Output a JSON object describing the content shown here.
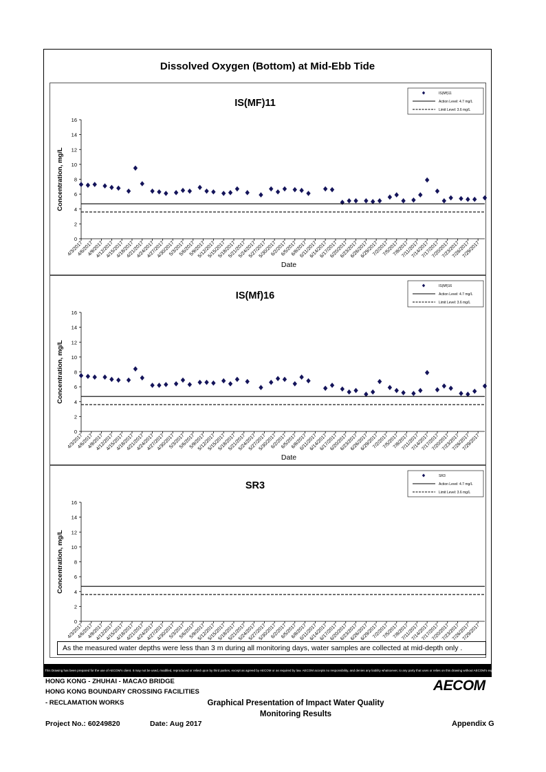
{
  "page": {
    "title": "Dissolved Oxygen (Bottom) at Mid-Ebb Tide",
    "note": "As the measured water depths were less than 3 m during all monitoring days, water samples are collected  at mid-depth only .",
    "disclaimer": "This Drawing has been prepared for the use of AECOM's client. It may not be used, modified, reproduced or relied upon by third parties, except as agreed by AECOM or as required by law. AECOM accepts no responsibility, and denies any liability whatsoever, to any party that uses or relies on this drawing without AECOM's express written consent."
  },
  "title_block": {
    "line1": "HONG KONG - ZHUHAI - MACAO BRIDGE",
    "line2": "HONG KONG BOUNDARY CROSSING FACILITIES",
    "line3": "- RECLAMATION WORKS",
    "graph_title_1": "Graphical Presentation of Impact Water Quality",
    "graph_title_2": "Monitoring Results",
    "project": "Project No.: 60249820",
    "date": "Date: Aug 2017",
    "appendix": "Appendix G",
    "logo": "AECOM"
  },
  "chart_data": [
    {
      "type": "scatter",
      "title": "IS(MF)11",
      "xlabel": "Date",
      "ylabel": "Concentration, mg/L",
      "ylim": [
        0,
        16
      ],
      "yticks": [
        0,
        2,
        4,
        6,
        8,
        10,
        12,
        14,
        16
      ],
      "xlim": [
        "2017-04-03",
        "2017-07-31"
      ],
      "xticks": [
        "4/3/2017",
        "4/6/2017",
        "4/9/2017",
        "4/12/2017",
        "4/15/2017",
        "4/18/2017",
        "4/21/2017",
        "4/24/2017",
        "4/27/2017",
        "4/30/2017",
        "5/3/2017",
        "5/6/2017",
        "5/9/2017",
        "5/12/2017",
        "5/15/2017",
        "5/18/2017",
        "5/21/2017",
        "5/24/2017",
        "5/27/2017",
        "5/30/2017",
        "6/2/2017",
        "6/5/2017",
        "6/8/2017",
        "6/11/2017",
        "6/14/2017",
        "6/17/2017",
        "6/20/2017",
        "6/23/2017",
        "6/26/2017",
        "6/29/2017",
        "7/2/2017",
        "7/5/2017",
        "7/8/2017",
        "7/11/2017",
        "7/14/2017",
        "7/17/2017",
        "7/20/2017",
        "7/23/2017",
        "7/26/2017",
        "7/29/2017"
      ],
      "legend_position": "top-right",
      "series": [
        {
          "name": "IS(Mf)11",
          "x": [
            "2017-04-03",
            "2017-04-05",
            "2017-04-07",
            "2017-04-10",
            "2017-04-12",
            "2017-04-14",
            "2017-04-17",
            "2017-04-19",
            "2017-04-21",
            "2017-04-24",
            "2017-04-26",
            "2017-04-28",
            "2017-05-01",
            "2017-05-03",
            "2017-05-05",
            "2017-05-08",
            "2017-05-10",
            "2017-05-12",
            "2017-05-15",
            "2017-05-17",
            "2017-05-19",
            "2017-05-22",
            "2017-05-26",
            "2017-05-29",
            "2017-05-31",
            "2017-06-02",
            "2017-06-05",
            "2017-06-07",
            "2017-06-09",
            "2017-06-14",
            "2017-06-16",
            "2017-06-19",
            "2017-06-21",
            "2017-06-23",
            "2017-06-26",
            "2017-06-28",
            "2017-06-30",
            "2017-07-03",
            "2017-07-05",
            "2017-07-07",
            "2017-07-10",
            "2017-07-12",
            "2017-07-14",
            "2017-07-17",
            "2017-07-19",
            "2017-07-21",
            "2017-07-24",
            "2017-07-26",
            "2017-07-28",
            "2017-07-31"
          ],
          "values": [
            7.3,
            7.2,
            7.3,
            7.1,
            6.9,
            6.8,
            6.4,
            9.5,
            7.4,
            6.4,
            6.3,
            6.1,
            6.2,
            6.5,
            6.4,
            6.9,
            6.4,
            6.3,
            6.1,
            6.2,
            6.7,
            6.2,
            5.9,
            6.7,
            6.3,
            6.7,
            6.6,
            6.5,
            6.1,
            6.7,
            6.6,
            4.9,
            5.1,
            5.1,
            5.1,
            5.0,
            5.1,
            5.6,
            5.9,
            5.1,
            5.2,
            5.9,
            7.9,
            6.4,
            5.1,
            5.5,
            5.4,
            5.3,
            5.3,
            5.5
          ]
        },
        {
          "name": "Action Level: 4.7 mg/L",
          "value": 4.7,
          "style": "solid"
        },
        {
          "name": "Limit Level: 3.6 mg/L",
          "value": 3.6,
          "style": "dashed"
        }
      ]
    },
    {
      "type": "scatter",
      "title": "IS(Mf)16",
      "xlabel": "Date",
      "ylabel": "Concentration, mg/L",
      "ylim": [
        0,
        16
      ],
      "yticks": [
        0,
        2,
        4,
        6,
        8,
        10,
        12,
        14,
        16
      ],
      "xlim": [
        "2017-04-03",
        "2017-07-31"
      ],
      "xticks": [
        "4/3/2017",
        "4/6/2017",
        "4/9/2017",
        "4/12/2017",
        "4/15/2017",
        "4/18/2017",
        "4/21/2017",
        "4/24/2017",
        "4/27/2017",
        "4/30/2017",
        "5/3/2017",
        "5/6/2017",
        "5/9/2017",
        "5/12/2017",
        "5/15/2017",
        "5/18/2017",
        "5/21/2017",
        "5/24/2017",
        "5/27/2017",
        "5/30/2017",
        "6/2/2017",
        "6/5/2017",
        "6/8/2017",
        "6/11/2017",
        "6/14/2017",
        "6/17/2017",
        "6/20/2017",
        "6/23/2017",
        "6/26/2017",
        "6/29/2017",
        "7/2/2017",
        "7/5/2017",
        "7/8/2017",
        "7/11/2017",
        "7/14/2017",
        "7/17/2017",
        "7/20/2017",
        "7/23/2017",
        "7/26/2017",
        "7/29/2017"
      ],
      "legend_position": "top-right",
      "series": [
        {
          "name": "IS(Mf)16",
          "x": [
            "2017-04-03",
            "2017-04-05",
            "2017-04-07",
            "2017-04-10",
            "2017-04-12",
            "2017-04-14",
            "2017-04-17",
            "2017-04-19",
            "2017-04-21",
            "2017-04-24",
            "2017-04-26",
            "2017-04-28",
            "2017-05-01",
            "2017-05-03",
            "2017-05-05",
            "2017-05-08",
            "2017-05-10",
            "2017-05-12",
            "2017-05-15",
            "2017-05-17",
            "2017-05-19",
            "2017-05-22",
            "2017-05-26",
            "2017-05-29",
            "2017-05-31",
            "2017-06-02",
            "2017-06-05",
            "2017-06-07",
            "2017-06-09",
            "2017-06-14",
            "2017-06-16",
            "2017-06-19",
            "2017-06-21",
            "2017-06-23",
            "2017-06-26",
            "2017-06-28",
            "2017-06-30",
            "2017-07-03",
            "2017-07-05",
            "2017-07-07",
            "2017-07-10",
            "2017-07-12",
            "2017-07-14",
            "2017-07-17",
            "2017-07-19",
            "2017-07-21",
            "2017-07-24",
            "2017-07-26",
            "2017-07-28",
            "2017-07-31"
          ],
          "values": [
            7.5,
            7.4,
            7.3,
            7.3,
            7.0,
            6.9,
            6.9,
            8.4,
            7.2,
            6.2,
            6.2,
            6.3,
            6.4,
            6.9,
            6.3,
            6.6,
            6.6,
            6.5,
            6.8,
            6.4,
            7.0,
            6.7,
            5.9,
            6.6,
            7.1,
            7.0,
            6.4,
            7.3,
            6.8,
            5.8,
            6.2,
            5.7,
            5.3,
            5.5,
            5.0,
            5.3,
            6.7,
            5.9,
            5.5,
            5.2,
            5.1,
            5.5,
            7.9,
            5.6,
            6.1,
            5.8,
            5.1,
            5.0,
            5.4,
            6.1
          ]
        },
        {
          "name": "Action Level: 4.7 mg/L",
          "value": 4.7,
          "style": "solid"
        },
        {
          "name": "Limit Level: 3.6 mg/L",
          "value": 3.6,
          "style": "dashed"
        }
      ]
    },
    {
      "type": "scatter",
      "title": "SR3",
      "xlabel": "Date",
      "ylabel": "Concentration, mg/L",
      "ylim": [
        0,
        16
      ],
      "yticks": [
        0,
        2,
        4,
        6,
        8,
        10,
        12,
        14,
        16
      ],
      "xlim": [
        "2017-04-03",
        "2017-07-31"
      ],
      "xticks": [
        "4/3/2017",
        "4/6/2017",
        "4/9/2017",
        "4/12/2017",
        "4/15/2017",
        "4/18/2017",
        "4/21/2017",
        "4/24/2017",
        "4/27/2017",
        "4/30/2017",
        "5/3/2017",
        "5/6/2017",
        "5/9/2017",
        "5/12/2017",
        "5/15/2017",
        "5/18/2017",
        "5/21/2017",
        "5/24/2017",
        "5/27/2017",
        "5/30/2017",
        "6/2/2017",
        "6/5/2017",
        "6/8/2017",
        "6/11/2017",
        "6/14/2017",
        "6/17/2017",
        "6/20/2017",
        "6/23/2017",
        "6/26/2017",
        "6/29/2017",
        "7/2/2017",
        "7/5/2017",
        "7/8/2017",
        "7/11/2017",
        "7/14/2017",
        "7/17/2017",
        "7/20/2017",
        "7/23/2017",
        "7/26/2017",
        "7/29/2017"
      ],
      "legend_position": "top-right",
      "series": [
        {
          "name": "SR3",
          "x": [],
          "values": []
        },
        {
          "name": "Action Level: 4.7 mg/L",
          "value": 4.7,
          "style": "solid"
        },
        {
          "name": "Limit Level: 3.6 mg/L",
          "value": 3.6,
          "style": "dashed"
        }
      ]
    }
  ]
}
